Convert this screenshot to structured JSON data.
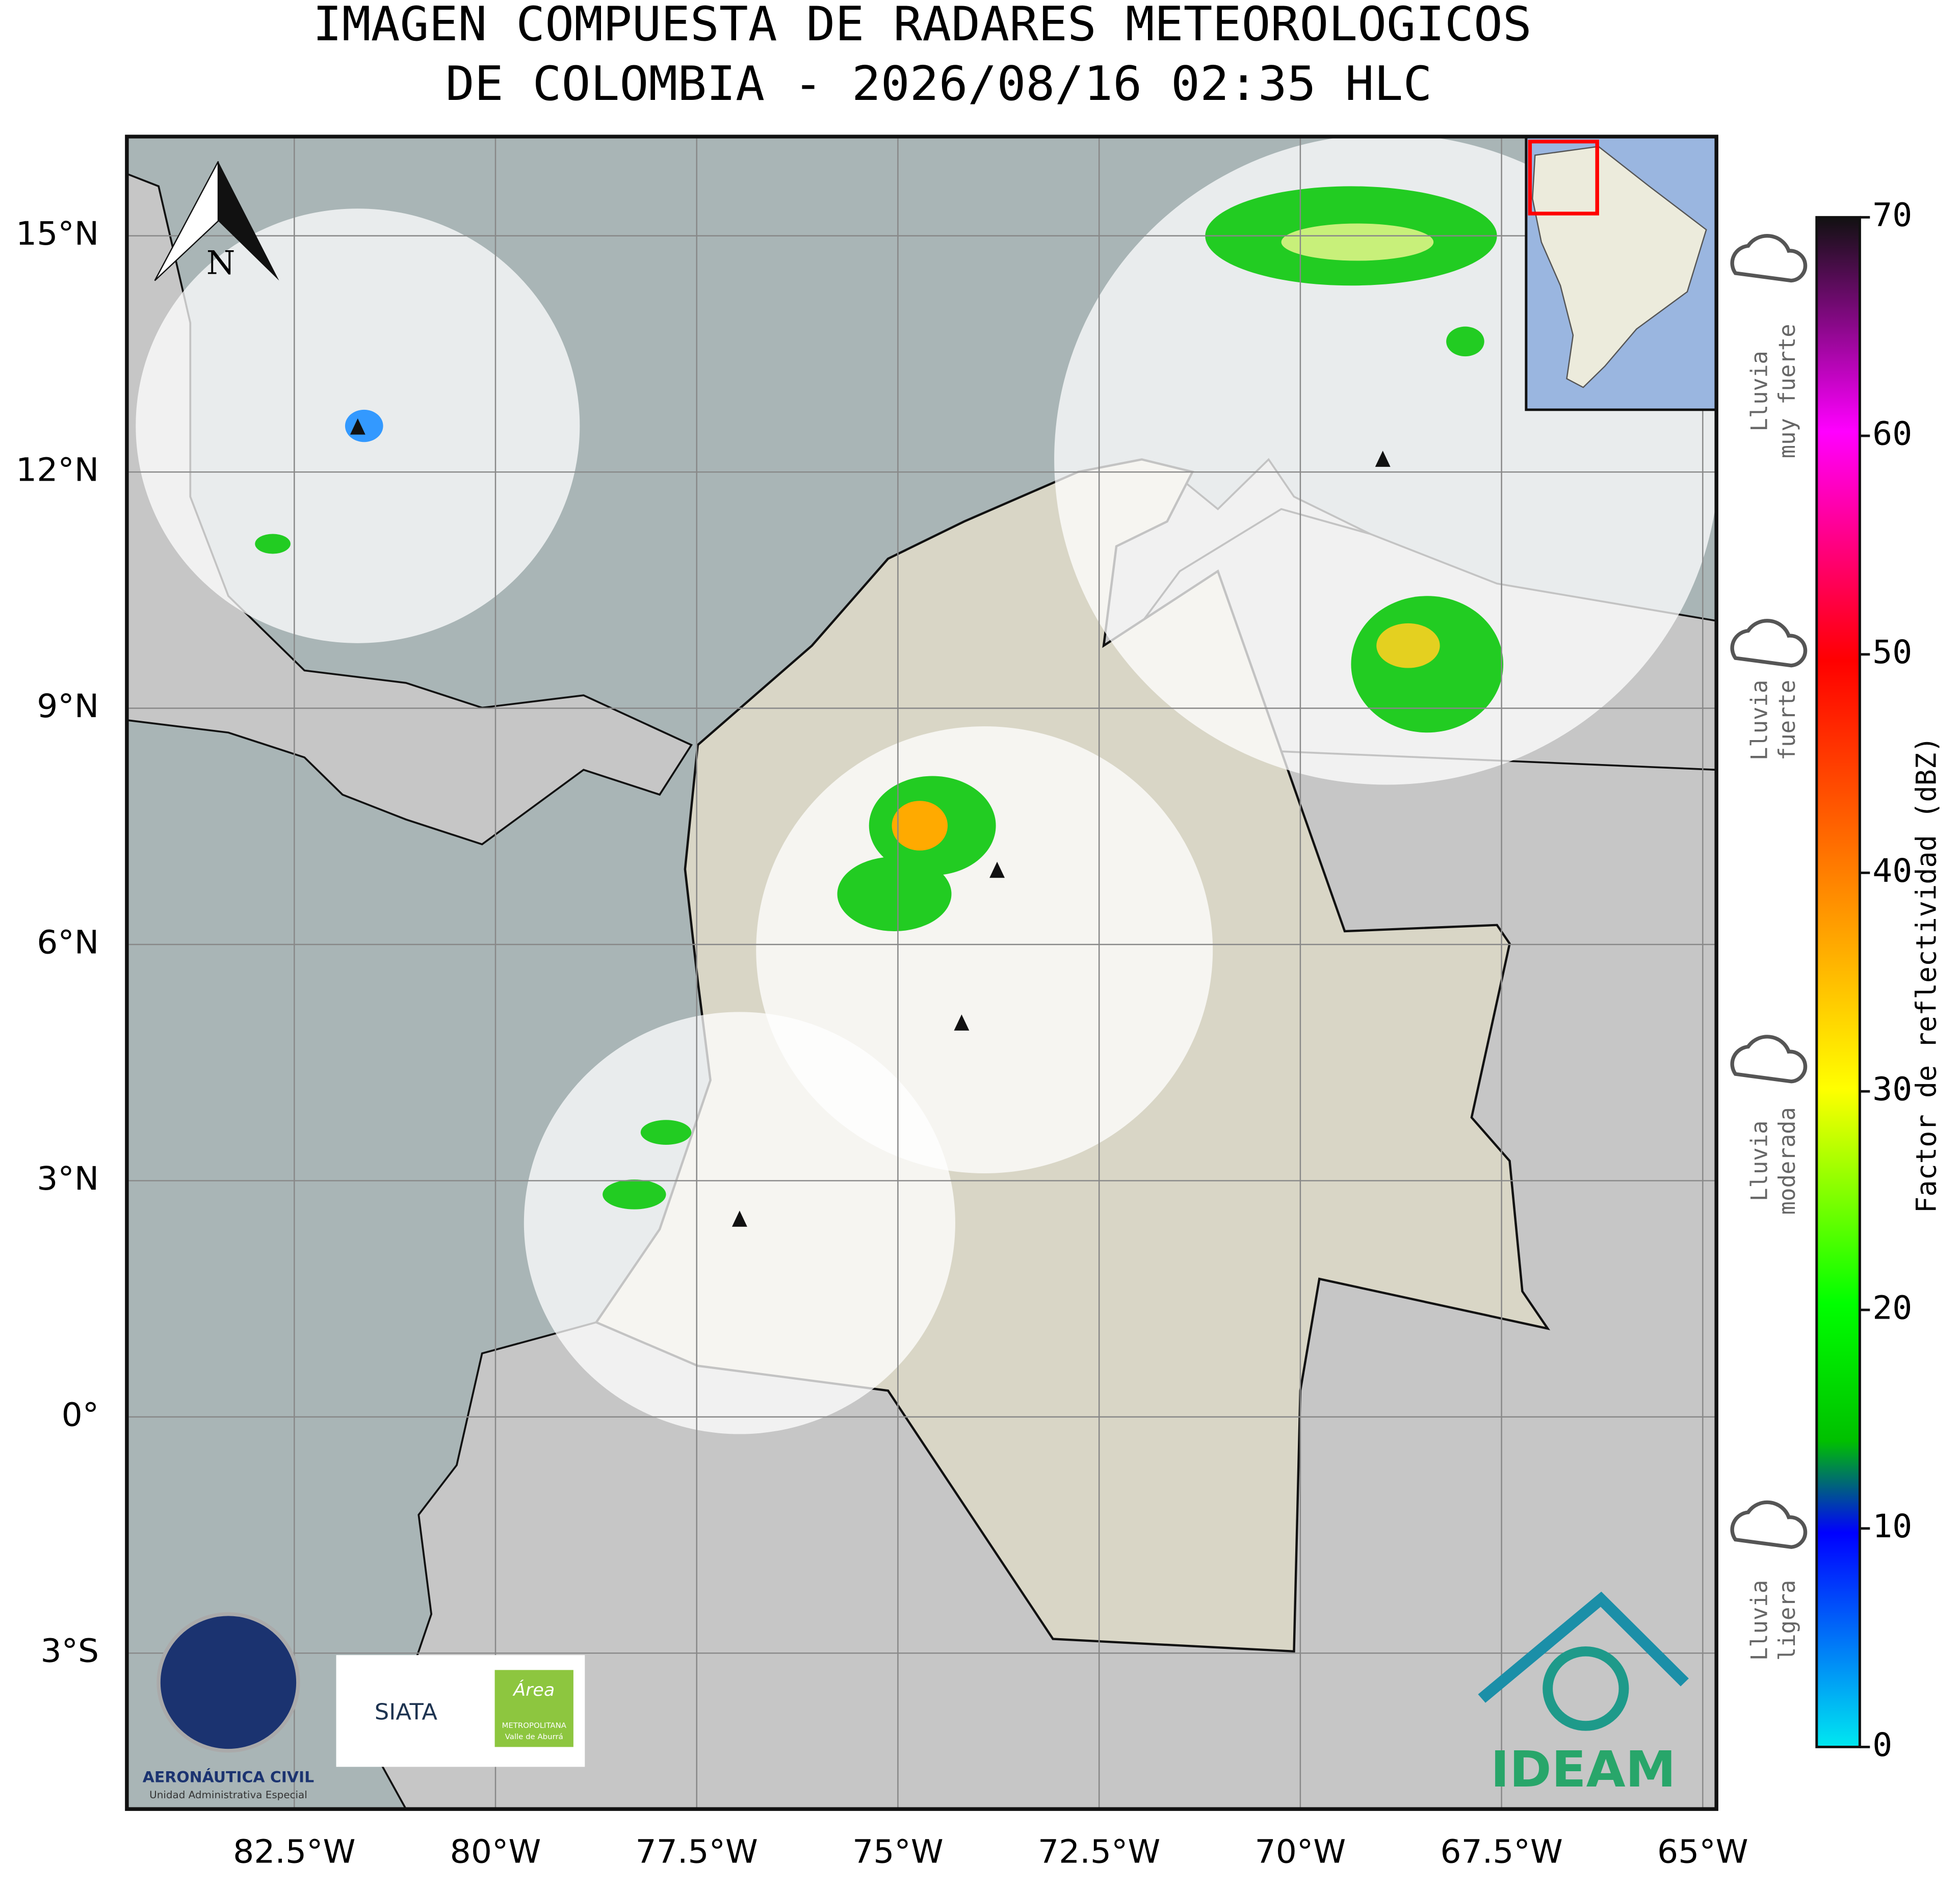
{
  "title": [
    "IMAGEN COMPUESTA DE RADARES METEOROLOGICOS",
    "DE COLOMBIA - 2026/08/16 02:35 HLC"
  ],
  "map": {
    "xlim": [
      -84.58,
      -64.83
    ],
    "ylim": [
      -4.98,
      16.26
    ],
    "lon_ticks": [
      {
        "value": -82.5,
        "label": "82.5°W"
      },
      {
        "value": -80,
        "label": "80°W"
      },
      {
        "value": -77.5,
        "label": "77.5°W"
      },
      {
        "value": -75,
        "label": "75°W"
      },
      {
        "value": -72.5,
        "label": "72.5°W"
      },
      {
        "value": -70,
        "label": "70°W"
      },
      {
        "value": -67.5,
        "label": "67.5°W"
      },
      {
        "value": -65,
        "label": "65°W"
      }
    ],
    "lat_ticks": [
      {
        "value": 15,
        "label": "15°N"
      },
      {
        "value": 12,
        "label": "12°N"
      },
      {
        "value": 9,
        "label": "9°N"
      },
      {
        "value": 6,
        "label": "6°N"
      },
      {
        "value": 3,
        "label": "3°N"
      },
      {
        "value": 0,
        "label": "0°"
      },
      {
        "value": -3,
        "label": "3°S"
      }
    ],
    "north_label": "N"
  },
  "colorbar": {
    "label": "Factor de reflectividad (dBZ)",
    "lim": [
      0,
      70
    ],
    "ticks": [
      0,
      10,
      20,
      30,
      40,
      50,
      60,
      70
    ]
  },
  "rain_legend": [
    {
      "lines": [
        "Lluvia",
        "muy fuerte"
      ]
    },
    {
      "lines": [
        "Lluvia",
        "fuerte"
      ]
    },
    {
      "lines": [
        "Lluvia",
        "moderada"
      ]
    },
    {
      "lines": [
        "Lluvia",
        "ligera"
      ]
    }
  ],
  "logos": {
    "aerocivil": [
      "AERONÁUTICA CIVIL",
      "Unidad Administrativa Especial"
    ],
    "siata": "SIATA",
    "area": [
      "Área",
      "METROPOLITANA",
      "Valle de Aburrá"
    ],
    "ideam": "IDEAM"
  }
}
